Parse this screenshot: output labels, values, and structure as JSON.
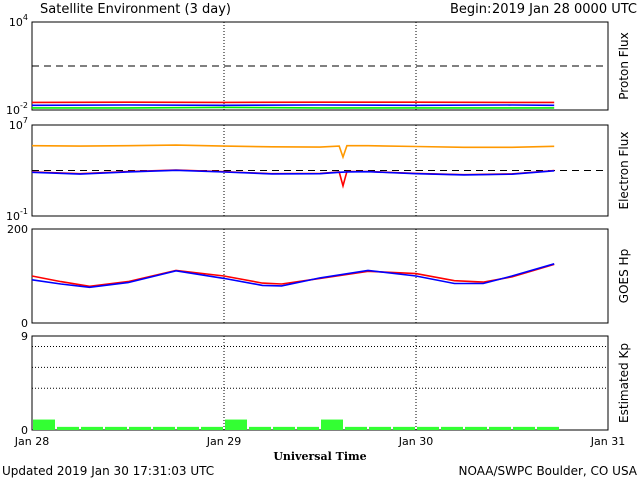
{
  "header": {
    "title": "Satellite Environment (3 day)",
    "begin_label": "Begin:",
    "begin_value": "2019 Jan 28 0000 UTC"
  },
  "footer": {
    "updated": "Updated 2019 Jan 30 17:31:03 UTC",
    "credit": "NOAA/SWPC Boulder, CO USA"
  },
  "colors": {
    "red": "#ff0000",
    "blue": "#0000ff",
    "green": "#00ee00",
    "orange": "#ff9900",
    "kp_bar": "#33ff33",
    "axis": "#000000"
  },
  "chart_data": [
    {
      "id": "proton",
      "type": "line",
      "ylabel": "Proton Flux",
      "yscale": "log",
      "ylim": [
        0.01,
        10000
      ],
      "ytick_labels": [
        {
          "base": "10",
          "exp": "4",
          "value": 10000
        },
        {
          "base": "10",
          "exp": "-2",
          "value": 0.01
        }
      ],
      "threshold": 10,
      "xlim_days": [
        0,
        3
      ],
      "series": [
        {
          "color": "red",
          "x": [
            0,
            0.5,
            1.0,
            1.5,
            2.0,
            2.5,
            2.72
          ],
          "values": [
            0.033,
            0.034,
            0.033,
            0.034,
            0.034,
            0.033,
            0.033
          ]
        },
        {
          "color": "blue",
          "x": [
            0,
            0.5,
            1.0,
            1.5,
            2.0,
            2.5,
            2.72
          ],
          "values": [
            0.021,
            0.022,
            0.021,
            0.022,
            0.021,
            0.022,
            0.021
          ]
        },
        {
          "color": "green",
          "x": [
            0,
            0.5,
            1.0,
            1.5,
            2.0,
            2.5,
            2.72
          ],
          "values": [
            0.014,
            0.014,
            0.015,
            0.014,
            0.014,
            0.014,
            0.014
          ]
        }
      ]
    },
    {
      "id": "electron",
      "type": "line",
      "ylabel": "Electron Flux",
      "yscale": "log",
      "ylim": [
        0.1,
        10000000
      ],
      "ytick_labels": [
        {
          "base": "10",
          "exp": "7",
          "value": 10000000
        },
        {
          "base": "10",
          "exp": "-1",
          "value": 0.1
        }
      ],
      "threshold": 1000,
      "xlim_days": [
        0,
        3
      ],
      "series": [
        {
          "color": "orange",
          "x": [
            0,
            0.25,
            0.5,
            0.75,
            1.0,
            1.25,
            1.5,
            1.6,
            1.62,
            1.64,
            1.75,
            2.0,
            2.25,
            2.5,
            2.72
          ],
          "values": [
            150000,
            140000,
            150000,
            170000,
            140000,
            120000,
            115000,
            140000,
            15000,
            150000,
            150000,
            130000,
            110000,
            110000,
            135000
          ]
        },
        {
          "color": "red",
          "x": [
            0,
            0.25,
            0.5,
            0.75,
            1.0,
            1.25,
            1.5,
            1.6,
            1.62,
            1.64,
            1.75,
            2.0,
            2.25,
            2.5,
            2.72
          ],
          "values": [
            750,
            520,
            800,
            1100,
            780,
            520,
            560,
            740,
            45,
            800,
            820,
            560,
            430,
            500,
            1000
          ]
        },
        {
          "color": "blue",
          "x": [
            0,
            0.25,
            0.5,
            0.75,
            1.0,
            1.25,
            1.5,
            1.6,
            1.64,
            1.75,
            2.0,
            2.25,
            2.5,
            2.72
          ],
          "values": [
            700,
            480,
            750,
            1050,
            740,
            500,
            520,
            700,
            760,
            780,
            520,
            410,
            470,
            950
          ]
        }
      ]
    },
    {
      "id": "hp",
      "type": "line",
      "ylabel": "GOES Hp",
      "yscale": "linear",
      "ylim": [
        0,
        200
      ],
      "ytick_labels": [
        {
          "base": "200",
          "exp": "",
          "value": 200
        },
        {
          "base": "0",
          "exp": "",
          "value": 0
        }
      ],
      "xlim_days": [
        0,
        3
      ],
      "series": [
        {
          "color": "red",
          "x": [
            0,
            0.15,
            0.3,
            0.5,
            0.75,
            1.0,
            1.2,
            1.3,
            1.5,
            1.75,
            2.0,
            2.2,
            2.35,
            2.5,
            2.72
          ],
          "values": [
            100,
            88,
            78,
            88,
            112,
            100,
            85,
            83,
            95,
            110,
            105,
            90,
            87,
            98,
            125
          ]
        },
        {
          "color": "blue",
          "x": [
            0,
            0.15,
            0.3,
            0.5,
            0.75,
            1.0,
            1.2,
            1.3,
            1.5,
            1.75,
            2.0,
            2.2,
            2.35,
            2.5,
            2.72
          ],
          "values": [
            92,
            83,
            76,
            86,
            111,
            95,
            80,
            79,
            96,
            112,
            100,
            84,
            84,
            100,
            126
          ]
        }
      ]
    },
    {
      "id": "kp",
      "type": "bar",
      "ylabel": "Estimated Kp",
      "yscale": "linear",
      "ylim": [
        0,
        9
      ],
      "ytick_labels": [
        {
          "base": "9",
          "exp": "",
          "value": 9
        },
        {
          "base": "0",
          "exp": "",
          "value": 0
        }
      ],
      "dotted_levels": [
        8,
        6,
        4
      ],
      "xlim_days": [
        0,
        3
      ],
      "bar_width_days": 0.125,
      "x": [
        0,
        0.125,
        0.25,
        0.375,
        0.5,
        0.625,
        0.75,
        0.875,
        1.0,
        1.125,
        1.25,
        1.375,
        1.5,
        1.625,
        1.75,
        1.875,
        2.0,
        2.125,
        2.25,
        2.375,
        2.5,
        2.625
      ],
      "values": [
        1,
        0.3,
        0.3,
        0.3,
        0.3,
        0.3,
        0.3,
        0.3,
        1,
        0.3,
        0.3,
        0.3,
        1,
        0.3,
        0.3,
        0.3,
        0.3,
        0.3,
        0.3,
        0.3,
        0.3,
        0.3
      ]
    }
  ],
  "x_axis": {
    "label": "Universal Time",
    "ticks": [
      {
        "day": 0,
        "label": "Jan 28"
      },
      {
        "day": 1,
        "label": "Jan 29"
      },
      {
        "day": 2,
        "label": "Jan 30"
      },
      {
        "day": 3,
        "label": "Jan 31"
      }
    ]
  }
}
